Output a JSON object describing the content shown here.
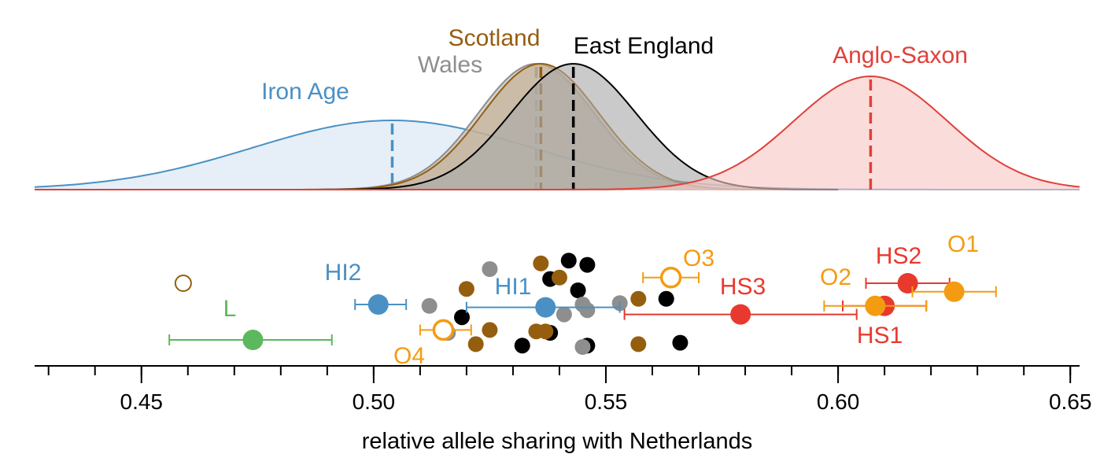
{
  "chart_data": {
    "type": "density+scatter",
    "xlabel": "relative allele sharing with Netherlands",
    "xlim": [
      0.427,
      0.652
    ],
    "xticks": [
      0.45,
      0.5,
      0.55,
      0.6,
      0.65
    ],
    "xtick_labels": [
      "0.45",
      "0.50",
      "0.55",
      "0.60",
      "0.65"
    ],
    "minor_tick_step": 0.01,
    "grid": false,
    "distributions": [
      {
        "label": "Iron Age",
        "color": "#4a90c4",
        "fill": "#d6e5f2",
        "mean": 0.504,
        "sd": 0.03,
        "height": 0.55,
        "xmin": 0.427,
        "xmax": 0.652
      },
      {
        "label": "Wales",
        "color": "#8e8e8e",
        "fill": "#b8b8b8",
        "mean": 0.535,
        "sd": 0.0125,
        "height": 1.0,
        "xmin": 0.427,
        "xmax": 0.6
      },
      {
        "label": "Scotland",
        "color": "#955e0e",
        "fill": "#c7ae8c",
        "mean": 0.536,
        "sd": 0.0125,
        "height": 1.0,
        "xmin": 0.427,
        "xmax": 0.6
      },
      {
        "label": "East England",
        "color": "#000000",
        "fill": "#aaaaaa",
        "mean": 0.543,
        "sd": 0.0135,
        "height": 1.0,
        "xmin": 0.427,
        "xmax": 0.6
      },
      {
        "label": "Anglo-Saxon",
        "color": "#e0403a",
        "fill": "#f7c8c5",
        "mean": 0.607,
        "sd": 0.0165,
        "height": 0.9,
        "xmin": 0.427,
        "xmax": 0.652
      }
    ],
    "points": [
      {
        "label": "L",
        "x": 0.474,
        "lo": 0.456,
        "hi": 0.491,
        "row": 2,
        "color": "#5cb85c",
        "filled": true
      },
      {
        "label": "HI2",
        "x": 0.501,
        "lo": 0.496,
        "hi": 0.507,
        "row": 0.75,
        "color": "#4a90c4",
        "filled": true
      },
      {
        "label": "HI1",
        "x": 0.537,
        "lo": 0.52,
        "hi": 0.553,
        "row": 0.85,
        "color": "#4a90c4",
        "filled": true
      },
      {
        "label": "O4",
        "x": 0.515,
        "lo": 0.51,
        "hi": 0.521,
        "row": 1.65,
        "color": "#f39c12",
        "filled": false
      },
      {
        "label": "O3",
        "x": 0.564,
        "lo": 0.558,
        "hi": 0.57,
        "row": -0.2,
        "color": "#f39c12",
        "filled": false
      },
      {
        "label": "HS3",
        "x": 0.579,
        "lo": 0.554,
        "hi": 0.604,
        "row": 1.1,
        "color": "#e8392e",
        "filled": true
      },
      {
        "label": "HS1",
        "x": 0.61,
        "lo": 0.601,
        "hi": 0.619,
        "row": 0.8,
        "color": "#e8392e",
        "filled": true
      },
      {
        "label": "O2",
        "x": 0.608,
        "lo": 0.597,
        "hi": 0.619,
        "row": 0.8,
        "color": "#f39c12",
        "filled": true
      },
      {
        "label": "HS2",
        "x": 0.615,
        "lo": 0.606,
        "hi": 0.624,
        "row": 0.0,
        "color": "#e8392e",
        "filled": true
      },
      {
        "label": "O1",
        "x": 0.625,
        "lo": 0.616,
        "hi": 0.634,
        "row": 0.3,
        "color": "#f39c12",
        "filled": true
      }
    ],
    "unlabeled_points": [
      {
        "x": 0.459,
        "row": 0.0,
        "color": "#955e0e",
        "filled": false
      },
      {
        "x": 0.525,
        "row": -0.5,
        "color": "#8e8e8e",
        "filled": true
      },
      {
        "x": 0.512,
        "row": 0.8,
        "color": "#8e8e8e",
        "filled": true
      },
      {
        "x": 0.52,
        "row": 0.2,
        "color": "#955e0e",
        "filled": true
      },
      {
        "x": 0.519,
        "row": 1.2,
        "color": "#000000",
        "filled": true
      },
      {
        "x": 0.536,
        "row": -0.7,
        "color": "#955e0e",
        "filled": true
      },
      {
        "x": 0.542,
        "row": -0.8,
        "color": "#000000",
        "filled": true
      },
      {
        "x": 0.546,
        "row": -0.65,
        "color": "#000000",
        "filled": true
      },
      {
        "x": 0.538,
        "row": -0.15,
        "color": "#000000",
        "filled": true
      },
      {
        "x": 0.54,
        "row": -0.2,
        "color": "#955e0e",
        "filled": true
      },
      {
        "x": 0.544,
        "row": 0.25,
        "color": "#000000",
        "filled": true
      },
      {
        "x": 0.545,
        "row": 0.75,
        "color": "#8e8e8e",
        "filled": true
      },
      {
        "x": 0.546,
        "row": 0.95,
        "color": "#8e8e8e",
        "filled": true
      },
      {
        "x": 0.541,
        "row": 1.1,
        "color": "#8e8e8e",
        "filled": true
      },
      {
        "x": 0.553,
        "row": 0.7,
        "color": "#8e8e8e",
        "filled": true
      },
      {
        "x": 0.557,
        "row": 0.55,
        "color": "#955e0e",
        "filled": true
      },
      {
        "x": 0.563,
        "row": 0.55,
        "color": "#000000",
        "filled": true
      },
      {
        "x": 0.516,
        "row": 1.75,
        "color": "#8e8e8e",
        "filled": true
      },
      {
        "x": 0.525,
        "row": 1.65,
        "color": "#955e0e",
        "filled": true
      },
      {
        "x": 0.522,
        "row": 2.15,
        "color": "#955e0e",
        "filled": true
      },
      {
        "x": 0.535,
        "row": 1.7,
        "color": "#955e0e",
        "filled": true
      },
      {
        "x": 0.538,
        "row": 1.75,
        "color": "#000000",
        "filled": true
      },
      {
        "x": 0.532,
        "row": 2.2,
        "color": "#000000",
        "filled": true
      },
      {
        "x": 0.537,
        "row": 1.7,
        "color": "#955e0e",
        "filled": true
      },
      {
        "x": 0.546,
        "row": 2.2,
        "color": "#000000",
        "filled": true
      },
      {
        "x": 0.545,
        "row": 2.25,
        "color": "#8e8e8e",
        "filled": true
      },
      {
        "x": 0.557,
        "row": 2.15,
        "color": "#955e0e",
        "filled": true
      },
      {
        "x": 0.566,
        "row": 2.1,
        "color": "#000000",
        "filled": true
      }
    ]
  }
}
